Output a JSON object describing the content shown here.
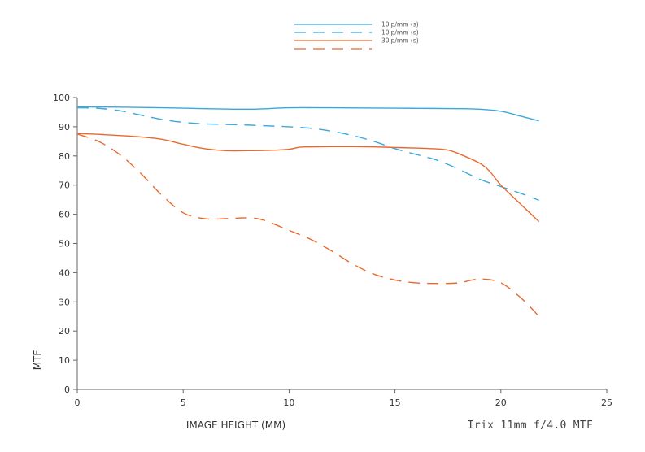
{
  "chart_data": {
    "type": "line",
    "title": "Irix 11mm f/4.0 MTF",
    "xlabel": "IMAGE HEIGHT (MM)",
    "ylabel": "MTF",
    "xlim": [
      0,
      25
    ],
    "ylim": [
      0,
      100
    ],
    "x_ticks": [
      "0",
      "5",
      "10",
      "15",
      "20",
      "25"
    ],
    "y_ticks": [
      "0",
      "10",
      "20",
      "30",
      "40",
      "50",
      "60",
      "70",
      "80",
      "90",
      "100"
    ],
    "grid": false,
    "legend_position": "top-center",
    "series": [
      {
        "name": "10lp/mm (s)",
        "color": "#3aa8dc",
        "dash": "solid",
        "x": [
          0,
          2,
          4,
          6,
          8,
          9,
          10,
          12,
          14,
          16,
          18,
          19,
          20,
          21,
          21.8
        ],
        "y": [
          96.8,
          96.7,
          96.5,
          96.2,
          96.0,
          96.2,
          96.5,
          96.5,
          96.4,
          96.3,
          96.2,
          96.0,
          95.3,
          93.5,
          92.0
        ]
      },
      {
        "name": "10lp/mm (s)",
        "color": "#3aa8dc",
        "dash": "dashed",
        "x": [
          0,
          1,
          2,
          3,
          4,
          5,
          6,
          7,
          8,
          9,
          10,
          11,
          12,
          13,
          14,
          15,
          16,
          17,
          18,
          19,
          20,
          21,
          21.8
        ],
        "y": [
          96.5,
          96.3,
          95.5,
          94.0,
          92.5,
          91.5,
          91.0,
          90.8,
          90.6,
          90.3,
          90.0,
          89.5,
          88.5,
          87.0,
          85.0,
          82.5,
          80.5,
          78.5,
          75.5,
          72.0,
          69.5,
          67.0,
          64.8
        ]
      },
      {
        "name": "30lp/mm (s)",
        "color": "#e8692e",
        "dash": "solid",
        "x": [
          0,
          1,
          2,
          3,
          4,
          5,
          6,
          7,
          8,
          9,
          10,
          10.5,
          11,
          12,
          13,
          14,
          15,
          16,
          17,
          17.5,
          18,
          19,
          19.5,
          20,
          21,
          21.8
        ],
        "y": [
          87.7,
          87.4,
          87.0,
          86.5,
          85.7,
          84.0,
          82.5,
          81.8,
          81.8,
          81.9,
          82.3,
          83.0,
          83.1,
          83.2,
          83.2,
          83.1,
          82.9,
          82.7,
          82.4,
          82.0,
          80.8,
          77.5,
          74.5,
          70.0,
          63.0,
          57.5
        ]
      },
      {
        "name": "",
        "color": "#e8692e",
        "dash": "dashed",
        "x": [
          0,
          1,
          2,
          3,
          4,
          5,
          6,
          7,
          8,
          8.5,
          9,
          10,
          11,
          12,
          13,
          14,
          15,
          16,
          17,
          18,
          19,
          20,
          21,
          21.8
        ],
        "y": [
          87.5,
          85.0,
          80.5,
          74.0,
          66.5,
          60.5,
          58.5,
          58.5,
          58.8,
          58.5,
          57.5,
          54.5,
          51.5,
          47.5,
          43.0,
          39.5,
          37.5,
          36.5,
          36.3,
          36.5,
          37.8,
          36.5,
          31.0,
          25.0
        ]
      }
    ]
  }
}
